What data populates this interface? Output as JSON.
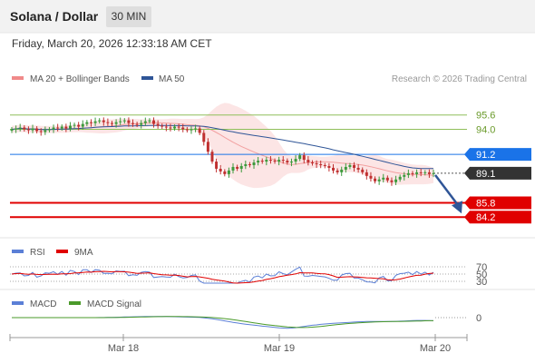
{
  "header": {
    "title": "Solana / Dollar",
    "timeframe": "30 MIN",
    "datetime": "Friday, March 20, 2026 12:33:18 AM CET"
  },
  "legend": {
    "items": [
      {
        "label": "MA 20 + Bollinger Bands",
        "color": "#f08a8a"
      },
      {
        "label": "MA 50",
        "color": "#2f5597"
      }
    ],
    "credit": "Research © 2026 Trading Central"
  },
  "chart_data": {
    "type": "candlestick",
    "price_range": [
      82.3,
      97.8
    ],
    "x_ticks": [
      "Mar 18",
      "Mar 19",
      "Mar 20"
    ],
    "candles_close_approx": [
      94.0,
      94.1,
      94.2,
      94.0,
      93.9,
      94.1,
      93.8,
      93.7,
      93.9,
      94.0,
      94.2,
      94.1,
      94.3,
      94.1,
      94.4,
      94.5,
      94.3,
      94.6,
      94.8,
      94.7,
      94.9,
      95.0,
      94.8,
      94.7,
      94.6,
      94.8,
      94.9,
      95.0,
      94.7,
      94.6,
      94.5,
      94.7,
      94.9,
      95.0,
      94.6,
      94.4,
      94.3,
      94.2,
      94.1,
      94.3,
      94.2,
      94.0,
      93.9,
      94.0,
      94.1,
      93.6,
      92.6,
      91.5,
      90.4,
      89.6,
      89.3,
      89.0,
      89.4,
      89.8,
      89.6,
      89.9,
      90.1,
      90.0,
      90.3,
      90.5,
      90.4,
      90.6,
      90.5,
      90.4,
      90.6,
      90.5,
      90.3,
      90.4,
      90.7,
      91.1,
      90.6,
      90.3,
      90.2,
      90.1,
      90.0,
      89.9,
      89.7,
      89.4,
      89.2,
      89.5,
      89.8,
      90.0,
      89.7,
      89.5,
      89.2,
      88.8,
      88.5,
      88.2,
      88.4,
      88.6,
      88.3,
      88.1,
      88.4,
      88.7,
      88.9,
      89.1,
      89.0,
      89.2,
      89.1,
      89.2,
      89.0,
      89.1
    ],
    "levels": [
      {
        "value": 95.6,
        "label": "95.6",
        "kind": "resistance",
        "color": "#8fbf5a"
      },
      {
        "value": 94.0,
        "label": "94.0",
        "kind": "resistance",
        "color": "#8fbf5a"
      },
      {
        "value": 91.2,
        "label": "91.2",
        "kind": "pivot",
        "color": "#1a73e8"
      },
      {
        "value": 89.1,
        "label": "89.1",
        "kind": "last",
        "color": "#333333"
      },
      {
        "value": 85.8,
        "label": "85.8",
        "kind": "support",
        "color": "#e00000"
      },
      {
        "value": 84.2,
        "label": "84.2",
        "kind": "support",
        "color": "#e00000"
      }
    ],
    "forecast_arrow": {
      "from": 89.1,
      "to": 84.2,
      "direction": "down",
      "color": "#2f5597"
    },
    "rsi": {
      "legend": [
        {
          "label": "RSI",
          "color": "#5b7fd6"
        },
        {
          "label": "9MA",
          "color": "#e00000"
        }
      ],
      "levels": [
        "70",
        "50",
        "30"
      ]
    },
    "macd": {
      "legend": [
        {
          "label": "MACD",
          "color": "#5b7fd6"
        },
        {
          "label": "MACD Signal",
          "color": "#4a9a2a"
        }
      ],
      "levels": [
        "0"
      ]
    }
  }
}
